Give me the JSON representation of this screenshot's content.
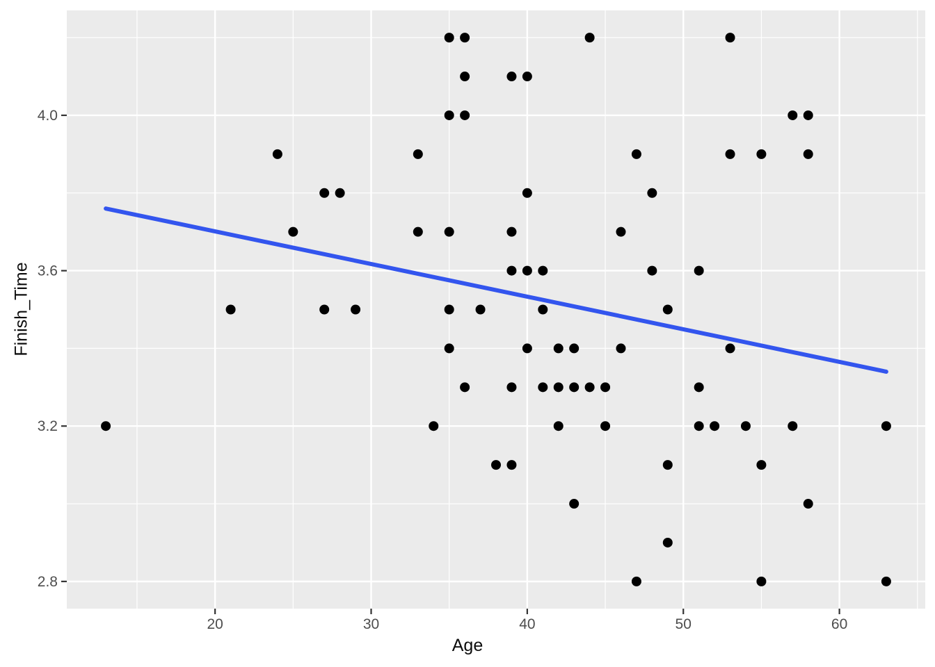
{
  "chart_data": {
    "type": "scatter",
    "title": "",
    "xlabel": "Age",
    "ylabel": "Finish_Time",
    "xlim": [
      10.5,
      65.5
    ],
    "ylim": [
      2.73,
      4.27
    ],
    "x_ticks": [
      {
        "value": 20,
        "label": "20"
      },
      {
        "value": 30,
        "label": "30"
      },
      {
        "value": 40,
        "label": "40"
      },
      {
        "value": 50,
        "label": "50"
      },
      {
        "value": 60,
        "label": "60"
      }
    ],
    "y_ticks": [
      {
        "value": 2.8,
        "label": "2.8"
      },
      {
        "value": 3.2,
        "label": "3.2"
      },
      {
        "value": 3.6,
        "label": "3.6"
      },
      {
        "value": 4.0,
        "label": "4.0"
      }
    ],
    "x_minor": [
      15,
      25,
      35,
      45,
      55,
      65
    ],
    "y_minor": [
      3.0,
      3.4,
      3.8,
      4.2
    ],
    "grid": "major+minor",
    "legend_position": "none",
    "points": [
      [
        13,
        3.2
      ],
      [
        21,
        3.5
      ],
      [
        24,
        3.9
      ],
      [
        25,
        3.7
      ],
      [
        27,
        3.5
      ],
      [
        27,
        3.8
      ],
      [
        28,
        3.8
      ],
      [
        29,
        3.5
      ],
      [
        33,
        3.7
      ],
      [
        33,
        3.9
      ],
      [
        34,
        3.2
      ],
      [
        35,
        3.4
      ],
      [
        35,
        3.5
      ],
      [
        35,
        3.7
      ],
      [
        35,
        4.0
      ],
      [
        35,
        4.2
      ],
      [
        36,
        3.3
      ],
      [
        36,
        4.0
      ],
      [
        36,
        4.1
      ],
      [
        36,
        4.2
      ],
      [
        37,
        3.5
      ],
      [
        38,
        3.1
      ],
      [
        39,
        3.1
      ],
      [
        39,
        3.3
      ],
      [
        39,
        3.6
      ],
      [
        39,
        3.7
      ],
      [
        39,
        4.1
      ],
      [
        40,
        3.4
      ],
      [
        40,
        3.6
      ],
      [
        40,
        3.8
      ],
      [
        40,
        4.1
      ],
      [
        41,
        3.3
      ],
      [
        41,
        3.5
      ],
      [
        41,
        3.6
      ],
      [
        42,
        3.2
      ],
      [
        42,
        3.3
      ],
      [
        42,
        3.4
      ],
      [
        43,
        3.0
      ],
      [
        43,
        3.3
      ],
      [
        43,
        3.4
      ],
      [
        44,
        3.3
      ],
      [
        44,
        4.2
      ],
      [
        45,
        3.2
      ],
      [
        45,
        3.3
      ],
      [
        46,
        3.4
      ],
      [
        46,
        3.7
      ],
      [
        47,
        2.8
      ],
      [
        47,
        3.9
      ],
      [
        48,
        3.6
      ],
      [
        48,
        3.8
      ],
      [
        49,
        2.9
      ],
      [
        49,
        3.1
      ],
      [
        49,
        3.5
      ],
      [
        51,
        3.2
      ],
      [
        51,
        3.3
      ],
      [
        51,
        3.6
      ],
      [
        52,
        3.2
      ],
      [
        53,
        3.4
      ],
      [
        53,
        3.9
      ],
      [
        53,
        4.2
      ],
      [
        54,
        3.2
      ],
      [
        55,
        2.8
      ],
      [
        55,
        3.1
      ],
      [
        55,
        3.9
      ],
      [
        57,
        3.2
      ],
      [
        57,
        4.0
      ],
      [
        58,
        3.0
      ],
      [
        58,
        3.9
      ],
      [
        58,
        4.0
      ],
      [
        63,
        2.8
      ],
      [
        63,
        3.2
      ]
    ],
    "trend_line": {
      "type": "linear",
      "x1": 13,
      "y1": 3.76,
      "x2": 63,
      "y2": 3.34
    }
  },
  "style": {
    "panel_bg": "#EBEBEB",
    "grid_color": "#FFFFFF",
    "point_color": "#000000",
    "trend_color": "#3355EE",
    "tick_mark_color": "#333333",
    "tick_label_color": "#4D4D4D",
    "axis_title_color": "#0D0D0D"
  }
}
